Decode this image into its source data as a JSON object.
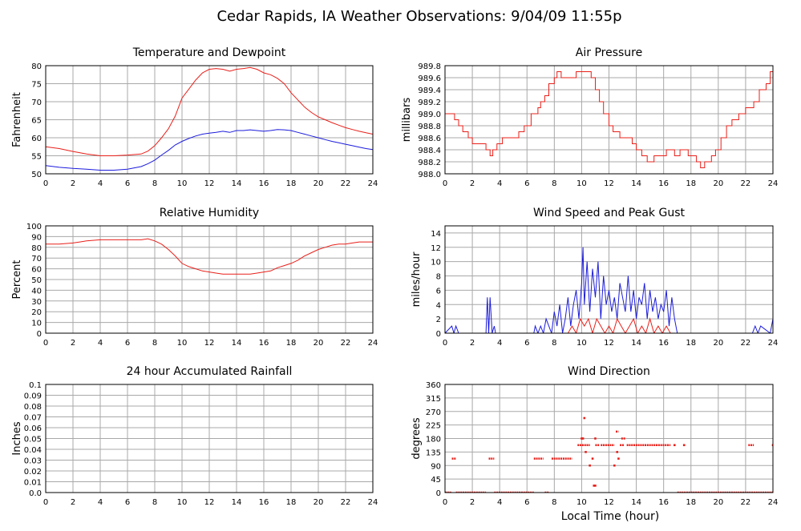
{
  "page": {
    "title": "Cedar Rapids, IA Weather Observations: 9/04/09 11:55p",
    "xlabel": "Local Time (hour)"
  },
  "colors": {
    "red": "#e8201a",
    "blue": "#1c1cdc",
    "grid": "#a8a8a8"
  },
  "chart_data": [
    {
      "id": "temp",
      "type": "line",
      "title": "Temperature and Dewpoint",
      "ylabel": "Fahrenheit",
      "xlim": [
        0,
        24
      ],
      "ylim": [
        50,
        80
      ],
      "xticks": [
        0,
        2,
        4,
        6,
        8,
        10,
        12,
        14,
        16,
        18,
        20,
        22,
        24
      ],
      "yticks": [
        50,
        55,
        60,
        65,
        70,
        75,
        80
      ],
      "ytick_labels": [
        "50",
        "55",
        "60",
        "65",
        "70",
        "75",
        "80"
      ],
      "series": [
        {
          "color": "red",
          "x": [
            0,
            1,
            2,
            3,
            4,
            5,
            6,
            7,
            7.5,
            8,
            8.5,
            9,
            9.5,
            10,
            10.5,
            11,
            11.5,
            12,
            12.5,
            13,
            13.5,
            14,
            14.5,
            15,
            15.5,
            16,
            16.5,
            17,
            17.5,
            18,
            18.5,
            19,
            19.5,
            20,
            20.5,
            21,
            21.5,
            22,
            22.5,
            23,
            23.5,
            24
          ],
          "y": [
            57.5,
            57.0,
            56.2,
            55.5,
            55.0,
            55.0,
            55.2,
            55.5,
            56.3,
            57.8,
            60.0,
            62.5,
            66.0,
            71.0,
            73.5,
            76.0,
            78.0,
            79.0,
            79.2,
            79.0,
            78.5,
            79.0,
            79.2,
            79.5,
            79.0,
            78.0,
            77.5,
            76.5,
            75.0,
            72.5,
            70.5,
            68.5,
            67.0,
            65.8,
            65.0,
            64.2,
            63.5,
            62.8,
            62.3,
            61.8,
            61.4,
            61.0
          ]
        },
        {
          "color": "blue",
          "x": [
            0,
            1,
            2,
            3,
            4,
            5,
            6,
            7,
            7.5,
            8,
            8.5,
            9,
            9.5,
            10,
            10.5,
            11,
            11.5,
            12,
            12.5,
            13,
            13.5,
            14,
            14.5,
            15,
            15.5,
            16,
            16.5,
            17,
            17.5,
            18,
            18.5,
            19,
            19.5,
            20,
            20.5,
            21,
            21.5,
            22,
            22.5,
            23,
            23.5,
            24
          ],
          "y": [
            52.3,
            51.8,
            51.5,
            51.3,
            51.0,
            51.0,
            51.3,
            52.0,
            52.8,
            53.8,
            55.2,
            56.5,
            58.0,
            59.0,
            59.8,
            60.5,
            61.0,
            61.3,
            61.5,
            61.8,
            61.5,
            62.0,
            62.0,
            62.2,
            62.0,
            61.8,
            62.0,
            62.3,
            62.2,
            62.0,
            61.5,
            61.0,
            60.5,
            60.0,
            59.5,
            59.0,
            58.6,
            58.2,
            57.8,
            57.4,
            57.0,
            56.7
          ]
        }
      ]
    },
    {
      "id": "pressure",
      "type": "line",
      "title": "Air Pressure",
      "ylabel": "millibars",
      "xlim": [
        0,
        24
      ],
      "ylim": [
        988.0,
        989.8
      ],
      "xticks": [
        0,
        2,
        4,
        6,
        8,
        10,
        12,
        14,
        16,
        18,
        20,
        22,
        24
      ],
      "yticks": [
        988.0,
        988.2,
        988.4,
        988.6,
        988.8,
        989.0,
        989.2,
        989.4,
        989.6,
        989.8
      ],
      "ytick_labels": [
        "988.0",
        "988.2",
        "988.4",
        "988.6",
        "988.8",
        "989.0",
        "989.2",
        "989.4",
        "989.6",
        "989.8"
      ],
      "series": [
        {
          "color": "red",
          "step": true,
          "x": [
            0,
            0.3,
            0.7,
            1.0,
            1.3,
            1.7,
            2.0,
            2.6,
            3.0,
            3.3,
            3.5,
            3.8,
            4.2,
            4.8,
            5.4,
            5.8,
            6.3,
            6.8,
            7.0,
            7.3,
            7.6,
            8.0,
            8.2,
            8.5,
            9.2,
            9.6,
            10.3,
            10.7,
            11.0,
            11.3,
            11.6,
            12.0,
            12.3,
            12.8,
            13.3,
            13.7,
            14.0,
            14.4,
            14.8,
            15.3,
            15.8,
            16.2,
            16.8,
            17.2,
            17.8,
            18.4,
            18.7,
            19.0,
            19.5,
            19.8,
            20.2,
            20.6,
            21.0,
            21.5,
            22.0,
            22.6,
            23.0,
            23.5,
            23.8,
            24.0
          ],
          "y": [
            989.0,
            989.0,
            988.9,
            988.8,
            988.7,
            988.6,
            988.5,
            988.5,
            988.4,
            988.3,
            988.4,
            988.5,
            988.6,
            988.6,
            988.7,
            988.8,
            989.0,
            989.1,
            989.2,
            989.3,
            989.5,
            989.6,
            989.7,
            989.6,
            989.6,
            989.7,
            989.7,
            989.6,
            989.4,
            989.2,
            989.0,
            988.8,
            988.7,
            988.6,
            988.6,
            988.5,
            988.4,
            988.3,
            988.2,
            988.3,
            988.3,
            988.4,
            988.3,
            988.4,
            988.3,
            988.2,
            988.1,
            988.2,
            988.3,
            988.4,
            988.6,
            988.8,
            988.9,
            989.0,
            989.1,
            989.2,
            989.4,
            989.5,
            989.7,
            989.8
          ]
        }
      ]
    },
    {
      "id": "humidity",
      "type": "line",
      "title": "Relative Humidity",
      "ylabel": "Percent",
      "xlim": [
        0,
        24
      ],
      "ylim": [
        0,
        100
      ],
      "xticks": [
        0,
        2,
        4,
        6,
        8,
        10,
        12,
        14,
        16,
        18,
        20,
        22,
        24
      ],
      "yticks": [
        0,
        10,
        20,
        30,
        40,
        50,
        60,
        70,
        80,
        90,
        100
      ],
      "ytick_labels": [
        "0",
        "10",
        "20",
        "30",
        "40",
        "50",
        "60",
        "70",
        "80",
        "90",
        "100"
      ],
      "series": [
        {
          "color": "red",
          "x": [
            0,
            1,
            2,
            2.5,
            3,
            4,
            5,
            6,
            7,
            7.5,
            8,
            8.5,
            9,
            9.5,
            10,
            10.5,
            11,
            11.5,
            12,
            12.5,
            13,
            13.5,
            14,
            14.5,
            15,
            15.5,
            16,
            16.5,
            17,
            17.5,
            18,
            18.5,
            19,
            19.5,
            20,
            20.5,
            21,
            21.5,
            22,
            22.5,
            23,
            23.5,
            24
          ],
          "y": [
            83,
            83,
            84,
            85,
            86,
            87,
            87,
            87,
            87,
            88,
            86,
            83,
            78,
            72,
            65,
            62,
            60,
            58,
            57,
            56,
            55,
            55,
            55,
            55,
            55,
            56,
            57,
            58,
            61,
            63,
            65,
            68,
            72,
            75,
            78,
            80,
            82,
            83,
            83,
            84,
            85,
            85,
            85
          ]
        }
      ]
    },
    {
      "id": "wind",
      "type": "line",
      "title": "Wind Speed and Peak Gust",
      "ylabel": "miles/hour",
      "xlim": [
        0,
        24
      ],
      "ylim": [
        0,
        15
      ],
      "xticks": [
        0,
        2,
        4,
        6,
        8,
        10,
        12,
        14,
        16,
        18,
        20,
        22,
        24
      ],
      "yticks": [
        0,
        2,
        4,
        6,
        8,
        10,
        12,
        14
      ],
      "ytick_labels": [
        "0",
        "2",
        "4",
        "6",
        "8",
        "10",
        "12",
        "14"
      ],
      "series": [
        {
          "color": "blue",
          "x": [
            0,
            0.5,
            0.65,
            0.8,
            1.0,
            3.0,
            3.1,
            3.2,
            3.3,
            3.45,
            3.6,
            3.7,
            6.5,
            6.6,
            6.8,
            7.0,
            7.2,
            7.4,
            7.6,
            7.8,
            8.0,
            8.2,
            8.4,
            8.6,
            8.8,
            9.0,
            9.2,
            9.4,
            9.6,
            9.8,
            10.0,
            10.1,
            10.2,
            10.4,
            10.6,
            10.8,
            11.0,
            11.2,
            11.4,
            11.6,
            11.8,
            12.0,
            12.2,
            12.4,
            12.6,
            12.8,
            13.0,
            13.2,
            13.4,
            13.6,
            13.8,
            14.0,
            14.2,
            14.4,
            14.6,
            14.8,
            15.0,
            15.2,
            15.4,
            15.6,
            15.8,
            16.0,
            16.2,
            16.4,
            16.6,
            16.8,
            17.0,
            17.2,
            22.5,
            22.7,
            22.9,
            23.1,
            23.8,
            24.0
          ],
          "y": [
            0,
            1,
            0,
            1,
            0,
            0,
            5,
            0,
            5,
            0,
            1,
            0,
            0,
            1,
            0,
            1,
            0,
            2,
            1,
            0,
            3,
            1,
            4,
            0,
            2,
            5,
            1,
            4,
            6,
            2,
            7,
            12,
            4,
            10,
            3,
            9,
            5,
            10,
            2,
            8,
            4,
            6,
            3,
            5,
            2,
            7,
            5,
            3,
            8,
            3,
            6,
            2,
            5,
            4,
            7,
            2,
            6,
            3,
            5,
            2,
            4,
            3,
            6,
            1,
            5,
            2,
            0,
            0,
            0,
            1,
            0,
            1,
            0,
            2
          ]
        },
        {
          "color": "red",
          "x": [
            0,
            9.0,
            9.3,
            9.6,
            9.9,
            10.2,
            10.5,
            10.8,
            11.1,
            11.4,
            11.7,
            12.0,
            12.3,
            12.6,
            12.9,
            13.2,
            13.5,
            13.8,
            14.1,
            14.4,
            14.7,
            15.0,
            15.3,
            15.6,
            15.9,
            16.2,
            16.5,
            24.0
          ],
          "y": [
            0,
            0,
            1,
            0,
            2,
            1,
            2,
            0,
            2,
            1,
            0,
            1,
            0,
            2,
            1,
            0,
            1,
            2,
            0,
            1,
            0,
            2,
            0,
            1,
            0,
            1,
            0,
            0
          ]
        }
      ]
    },
    {
      "id": "rain",
      "type": "line",
      "title": "24 hour Accumulated Rainfall",
      "ylabel": "Inches",
      "xlim": [
        0,
        24
      ],
      "ylim": [
        0,
        0.1
      ],
      "xticks": [
        0,
        2,
        4,
        6,
        8,
        10,
        12,
        14,
        16,
        18,
        20,
        22,
        24
      ],
      "yticks": [
        0,
        0.01,
        0.02,
        0.03,
        0.04,
        0.05,
        0.06,
        0.07,
        0.08,
        0.09,
        0.1
      ],
      "ytick_labels": [
        "0.0",
        "0.01",
        "0.02",
        "0.03",
        "0.04",
        "0.05",
        "0.06",
        "0.07",
        "0.08",
        "0.09",
        "0.1"
      ],
      "series": [
        {
          "color": "red",
          "x": [
            0,
            24
          ],
          "y": [
            0,
            0
          ]
        }
      ]
    },
    {
      "id": "direction",
      "type": "scatter",
      "title": "Wind Direction",
      "ylabel": "degrees",
      "xlim": [
        0,
        24
      ],
      "ylim": [
        0,
        360
      ],
      "xticks": [
        0,
        2,
        4,
        6,
        8,
        10,
        12,
        14,
        16,
        18,
        20,
        22,
        24
      ],
      "yticks": [
        0,
        45,
        90,
        135,
        180,
        225,
        270,
        315,
        360
      ],
      "ytick_labels": [
        "0",
        "45",
        "90",
        "135",
        "180",
        "225",
        "270",
        "315",
        "360"
      ],
      "segments": [
        {
          "x0": 0.0,
          "x1": 0.5,
          "y": 0
        },
        {
          "x0": 0.5,
          "x1": 0.8,
          "y": 113
        },
        {
          "x0": 0.8,
          "x1": 3.0,
          "y": 0
        },
        {
          "x0": 3.2,
          "x1": 3.6,
          "y": 113
        },
        {
          "x0": 3.6,
          "x1": 6.5,
          "y": 0
        },
        {
          "x0": 6.5,
          "x1": 7.2,
          "y": 113
        },
        {
          "x0": 7.3,
          "x1": 7.6,
          "y": 0
        },
        {
          "x0": 7.8,
          "x1": 9.3,
          "y": 113
        },
        {
          "x0": 9.7,
          "x1": 10.6,
          "y": 158
        },
        {
          "x0": 11.0,
          "x1": 11.3,
          "y": 158
        },
        {
          "x0": 11.4,
          "x1": 12.4,
          "y": 158
        },
        {
          "x0": 12.8,
          "x1": 13.1,
          "y": 158
        },
        {
          "x0": 12.5,
          "x1": 12.7,
          "y": 203
        },
        {
          "x0": 12.9,
          "x1": 13.2,
          "y": 180
        },
        {
          "x0": 13.3,
          "x1": 16.5,
          "y": 158
        },
        {
          "x0": 17.0,
          "x1": 24.0,
          "y": 0
        },
        {
          "x0": 22.2,
          "x1": 22.6,
          "y": 158
        }
      ],
      "points": [
        {
          "x": 10.2,
          "y": 248
        },
        {
          "x": 10.1,
          "y": 180
        },
        {
          "x": 10.3,
          "y": 135
        },
        {
          "x": 10.6,
          "y": 90
        },
        {
          "x": 10.8,
          "y": 113
        },
        {
          "x": 10.9,
          "y": 23
        },
        {
          "x": 11.0,
          "y": 23
        },
        {
          "x": 11.0,
          "y": 180
        },
        {
          "x": 12.4,
          "y": 90
        },
        {
          "x": 12.6,
          "y": 135
        },
        {
          "x": 12.7,
          "y": 113
        },
        {
          "x": 10.0,
          "y": 180
        },
        {
          "x": 16.8,
          "y": 158
        },
        {
          "x": 17.5,
          "y": 158
        },
        {
          "x": 24.0,
          "y": 158
        }
      ]
    }
  ]
}
